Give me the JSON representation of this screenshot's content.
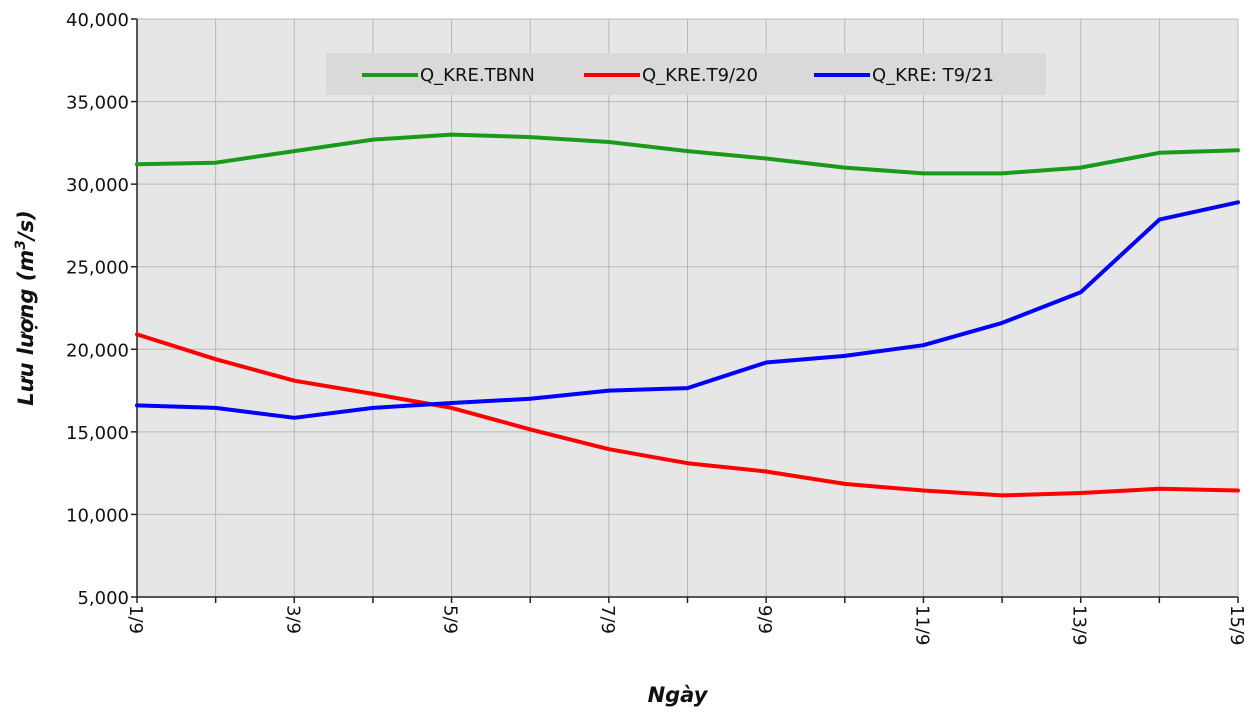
{
  "chart_data": {
    "type": "line",
    "xlabel": "Ngày",
    "ylabel_main": "Lưu lượng (m",
    "ylabel_sup": "3",
    "ylabel_tail": "/s)",
    "x": [
      "1/9",
      "2/9",
      "3/9",
      "4/9",
      "5/9",
      "6/9",
      "7/9",
      "8/9",
      "9/9",
      "10/9",
      "11/9",
      "12/9",
      "13/9",
      "14/9",
      "15/9"
    ],
    "x_tick_labels": [
      "1/9",
      "",
      "3/9",
      "",
      "5/9",
      "",
      "7/9",
      "",
      "9/9",
      "",
      "11/9",
      "",
      "13/9",
      "",
      "15/9"
    ],
    "ylim": [
      5000,
      40000
    ],
    "y_ticks": [
      5000,
      10000,
      15000,
      20000,
      25000,
      30000,
      35000,
      40000
    ],
    "y_tick_labels": [
      "5,000",
      "10,000",
      "15,000",
      "20,000",
      "25,000",
      "30,000",
      "35,000",
      "40,000"
    ],
    "grid": true,
    "legend_position": "top",
    "series": [
      {
        "name": "Q_KRE.TBNN",
        "color": "#1a9a1a",
        "values": [
          31200,
          31300,
          32000,
          32700,
          33000,
          32850,
          32550,
          32000,
          31550,
          31000,
          30650,
          30650,
          31000,
          31900,
          32050
        ]
      },
      {
        "name": "Q_KRE.T9/20",
        "color": "#ff0000",
        "values": [
          20900,
          19400,
          18100,
          17300,
          16450,
          15150,
          13950,
          13100,
          12600,
          11850,
          11450,
          11150,
          11300,
          11550,
          11450
        ]
      },
      {
        "name": "Q_KRE: T9/21",
        "color": "#0000ff",
        "values": [
          16600,
          16450,
          15850,
          16450,
          16750,
          17000,
          17500,
          17650,
          19200,
          19600,
          20250,
          21600,
          23450,
          27850,
          28900
        ]
      }
    ]
  }
}
